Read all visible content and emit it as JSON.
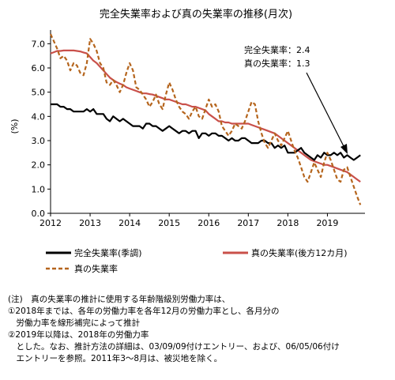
{
  "chart_data": {
    "type": "line",
    "title": "完全失業率および真の失業率の推移(月次)",
    "ylabel": "(%)",
    "xlabel": "",
    "ylim": [
      0.0,
      7.5
    ],
    "yticks": [
      "0.0",
      "1.0",
      "2.0",
      "3.0",
      "4.0",
      "5.0",
      "6.0",
      "7.0"
    ],
    "xticks": [
      "2012",
      "2013",
      "2014",
      "2015",
      "2016",
      "2017",
      "2018",
      "2019"
    ],
    "x_start": 2012.0,
    "x_step": 0.0833333,
    "grid": false,
    "legend_position": "bottom",
    "series": [
      {
        "name": "完全失業率(季調)",
        "color": "#000000",
        "style": "solid",
        "values": [
          4.5,
          4.5,
          4.5,
          4.4,
          4.4,
          4.3,
          4.3,
          4.2,
          4.2,
          4.2,
          4.2,
          4.3,
          4.2,
          4.3,
          4.1,
          4.1,
          4.1,
          3.9,
          3.8,
          4.0,
          3.9,
          3.8,
          3.9,
          3.8,
          3.7,
          3.6,
          3.6,
          3.6,
          3.5,
          3.7,
          3.7,
          3.6,
          3.6,
          3.5,
          3.4,
          3.5,
          3.6,
          3.5,
          3.4,
          3.3,
          3.4,
          3.4,
          3.3,
          3.4,
          3.4,
          3.1,
          3.3,
          3.3,
          3.2,
          3.3,
          3.3,
          3.2,
          3.2,
          3.1,
          3.0,
          3.1,
          3.0,
          3.0,
          3.1,
          3.1,
          3.0,
          2.9,
          2.9,
          2.9,
          3.0,
          3.0,
          2.9,
          2.9,
          2.7,
          2.8,
          2.7,
          2.8,
          2.5,
          2.5,
          2.5,
          2.6,
          2.7,
          2.5,
          2.4,
          2.3,
          2.2,
          2.4,
          2.3,
          2.5,
          2.4,
          2.4,
          2.5,
          2.4,
          2.5,
          2.3,
          2.4,
          2.3,
          2.2,
          2.3,
          2.4
        ]
      },
      {
        "name": "真の失業率(後方12カ月)",
        "color": "#c9504a",
        "style": "solid",
        "values": [
          6.6,
          6.65,
          6.7,
          6.7,
          6.72,
          6.72,
          6.72,
          6.72,
          6.7,
          6.68,
          6.64,
          6.6,
          6.45,
          6.3,
          6.2,
          6.05,
          5.9,
          5.75,
          5.6,
          5.5,
          5.42,
          5.35,
          5.3,
          5.2,
          5.15,
          5.1,
          5.05,
          5.0,
          4.95,
          4.95,
          4.92,
          4.9,
          4.85,
          4.8,
          4.75,
          4.7,
          4.7,
          4.65,
          4.6,
          4.55,
          4.5,
          4.5,
          4.45,
          4.4,
          4.4,
          4.35,
          4.3,
          4.25,
          4.1,
          4.0,
          3.9,
          3.8,
          3.8,
          3.75,
          3.75,
          3.7,
          3.7,
          3.7,
          3.7,
          3.7,
          3.7,
          3.65,
          3.6,
          3.55,
          3.5,
          3.45,
          3.4,
          3.35,
          3.3,
          3.2,
          3.1,
          3.0,
          2.9,
          2.8,
          2.7,
          2.6,
          2.5,
          2.4,
          2.3,
          2.2,
          2.15,
          2.1,
          2.05,
          2.0,
          2.0,
          1.95,
          1.9,
          1.85,
          1.8,
          1.75,
          1.7,
          1.6,
          1.5,
          1.4,
          1.3
        ]
      },
      {
        "name": "真の失業率",
        "color": "#b5651d",
        "style": "dashed",
        "values": [
          7.4,
          7.1,
          6.8,
          6.4,
          6.5,
          6.3,
          5.9,
          6.2,
          6.1,
          5.8,
          5.7,
          6.2,
          7.2,
          7.0,
          6.7,
          6.2,
          6.0,
          5.4,
          5.3,
          5.5,
          5.3,
          5.0,
          5.3,
          5.8,
          6.2,
          5.9,
          5.2,
          5.1,
          4.9,
          4.7,
          4.4,
          4.6,
          4.9,
          4.5,
          4.3,
          4.9,
          5.4,
          5.1,
          4.7,
          4.4,
          4.2,
          4.1,
          3.9,
          4.2,
          4.4,
          4.0,
          3.9,
          4.3,
          4.7,
          4.4,
          4.5,
          4.2,
          3.6,
          3.4,
          3.2,
          3.4,
          3.7,
          3.6,
          3.5,
          3.8,
          4.2,
          4.6,
          4.5,
          3.8,
          3.3,
          2.9,
          2.7,
          3.0,
          3.3,
          3.0,
          2.8,
          3.1,
          3.4,
          3.0,
          2.6,
          2.3,
          1.9,
          1.5,
          1.3,
          1.7,
          2.1,
          1.8,
          1.5,
          2.1,
          2.5,
          2.2,
          1.8,
          1.4,
          1.3,
          1.8,
          1.9,
          1.5,
          1.1,
          0.7,
          0.35
        ]
      }
    ],
    "annotation": {
      "line1": "完全失業率：2.4",
      "line2": "真の失業率：1.3"
    }
  },
  "notes": [
    "(注)　真の失業率の推計に使用する年齢階級別労働力率は、",
    "①2018年までは、各年の労働力率を各年12月の労働力率とし、各月分の",
    "　労働力率を線形補完によって推計",
    "②2019年以降は、2018年の労働力率",
    "　とした。なお、推計方法の詳細は、03/09/09付けエントリー、および、06/05/06付け",
    "　エントリーを参照。2011年3～8月は、被災地を除く。"
  ]
}
